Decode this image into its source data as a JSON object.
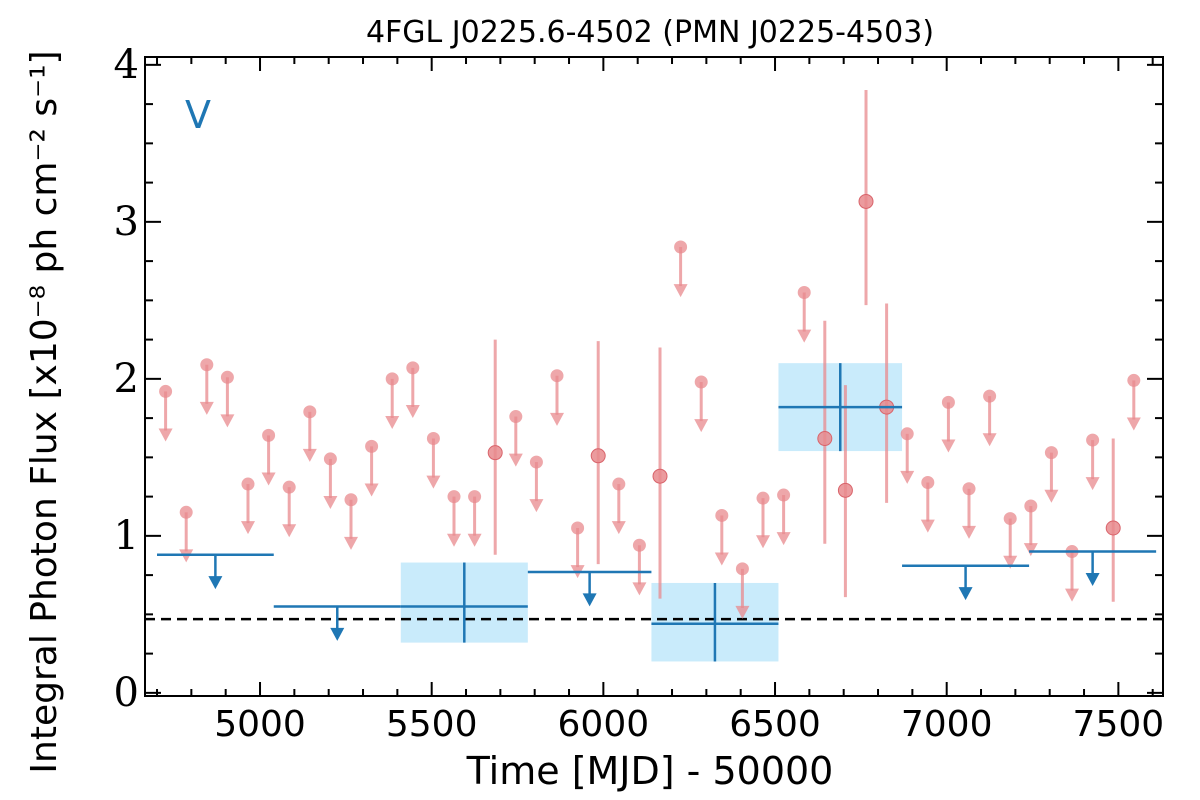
{
  "chart_data": {
    "type": "scatter",
    "title": "4FGL J0225.6-4502 (PMN J0225-4503)",
    "xlabel": "Time [MJD] - 50000",
    "ylabel": "Integral Photon Flux [x10⁻⁸ ph cm⁻² s⁻¹]",
    "annotation": "V",
    "xlim": [
      4665,
      7630
    ],
    "ylim": [
      -0.02,
      4.05
    ],
    "xticks": [
      5000,
      5500,
      6000,
      6500,
      7000,
      7500
    ],
    "yticks": [
      0,
      1,
      2,
      3,
      4
    ],
    "reference_line_y": 0.47,
    "colors": {
      "fine": "#e8898d",
      "coarse": "#1f77b4",
      "band": "#c9ebfb",
      "reference": "#000000"
    },
    "fine_upper_limits": [
      {
        "x": 4725,
        "y": 1.92
      },
      {
        "x": 4785,
        "y": 1.15
      },
      {
        "x": 4845,
        "y": 2.09
      },
      {
        "x": 4905,
        "y": 2.01
      },
      {
        "x": 4965,
        "y": 1.33
      },
      {
        "x": 5025,
        "y": 1.64
      },
      {
        "x": 5085,
        "y": 1.31
      },
      {
        "x": 5145,
        "y": 1.79
      },
      {
        "x": 5205,
        "y": 1.49
      },
      {
        "x": 5265,
        "y": 1.23
      },
      {
        "x": 5325,
        "y": 1.57
      },
      {
        "x": 5385,
        "y": 2.0
      },
      {
        "x": 5445,
        "y": 2.07
      },
      {
        "x": 5505,
        "y": 1.62
      },
      {
        "x": 5565,
        "y": 1.25
      },
      {
        "x": 5625,
        "y": 1.25
      },
      {
        "x": 5745,
        "y": 1.76
      },
      {
        "x": 5805,
        "y": 1.47
      },
      {
        "x": 5865,
        "y": 2.02
      },
      {
        "x": 5925,
        "y": 1.05
      },
      {
        "x": 6045,
        "y": 1.33
      },
      {
        "x": 6105,
        "y": 0.94
      },
      {
        "x": 6225,
        "y": 2.84
      },
      {
        "x": 6285,
        "y": 1.98
      },
      {
        "x": 6345,
        "y": 1.13
      },
      {
        "x": 6405,
        "y": 0.79
      },
      {
        "x": 6465,
        "y": 1.24
      },
      {
        "x": 6525,
        "y": 1.26
      },
      {
        "x": 6585,
        "y": 2.55
      },
      {
        "x": 6885,
        "y": 1.65
      },
      {
        "x": 6945,
        "y": 1.34
      },
      {
        "x": 7005,
        "y": 1.85
      },
      {
        "x": 7065,
        "y": 1.3
      },
      {
        "x": 7125,
        "y": 1.89
      },
      {
        "x": 7185,
        "y": 1.11
      },
      {
        "x": 7245,
        "y": 1.19
      },
      {
        "x": 7305,
        "y": 1.53
      },
      {
        "x": 7365,
        "y": 0.9
      },
      {
        "x": 7425,
        "y": 1.61
      },
      {
        "x": 7545,
        "y": 1.99
      }
    ],
    "fine_detections": [
      {
        "x": 5685,
        "y": 1.53,
        "y_low": 0.88,
        "y_high": 2.25
      },
      {
        "x": 5985,
        "y": 1.51,
        "y_low": 0.82,
        "y_high": 2.24
      },
      {
        "x": 6165,
        "y": 1.38,
        "y_low": 0.6,
        "y_high": 2.2
      },
      {
        "x": 6645,
        "y": 1.62,
        "y_low": 0.95,
        "y_high": 2.37
      },
      {
        "x": 6705,
        "y": 1.29,
        "y_low": 0.61,
        "y_high": 1.96
      },
      {
        "x": 6765,
        "y": 3.13,
        "y_low": 2.47,
        "y_high": 3.84
      },
      {
        "x": 6825,
        "y": 1.82,
        "y_low": 1.21,
        "y_high": 2.48
      },
      {
        "x": 7485,
        "y": 1.05,
        "y_low": 0.58,
        "y_high": 1.62
      }
    ],
    "coarse_upper_limits": [
      {
        "x_start": 4700,
        "x_end": 5040,
        "y": 0.88
      },
      {
        "x_start": 5040,
        "x_end": 5410,
        "y": 0.55
      },
      {
        "x_start": 5780,
        "x_end": 6140,
        "y": 0.77
      },
      {
        "x_start": 6870,
        "x_end": 7240,
        "y": 0.81
      },
      {
        "x_start": 7240,
        "x_end": 7610,
        "y": 0.9
      }
    ],
    "coarse_detections": [
      {
        "x": 5595,
        "x_start": 5410,
        "x_end": 5780,
        "y": 0.55,
        "y_low": 0.32,
        "y_high": 0.83
      },
      {
        "x": 6325,
        "x_start": 6140,
        "x_end": 6510,
        "y": 0.44,
        "y_low": 0.2,
        "y_high": 0.7
      },
      {
        "x": 6690,
        "x_start": 6510,
        "x_end": 6870,
        "y": 1.82,
        "y_low": 1.54,
        "y_high": 2.1
      }
    ]
  }
}
